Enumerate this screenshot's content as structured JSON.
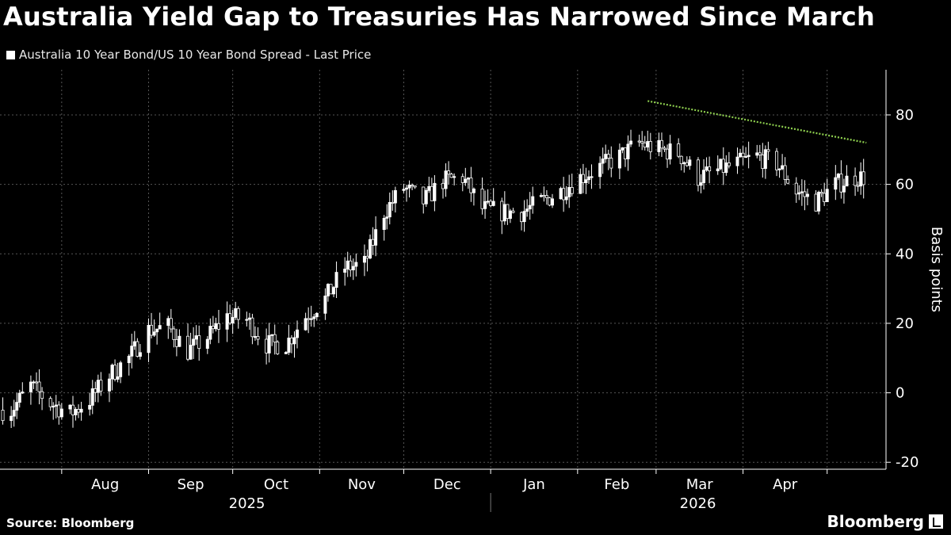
{
  "header": {
    "title": "Australia Yield Gap to Treasuries Has Narrowed Since March",
    "legend_label": "Australia 10 Year Bond/US 10 Year Bond Spread - Last Price"
  },
  "footer": {
    "source": "Source: Bloomberg",
    "brand": "Bloomberg"
  },
  "colors": {
    "background": "#000000",
    "candle": "#ffffff",
    "grid": "#555555",
    "trendline": "#8fd14f"
  },
  "chart_data": {
    "type": "candlestick",
    "ylabel": "Basis points",
    "ylim": [
      -22,
      93
    ],
    "yticks": [
      -20,
      0,
      20,
      40,
      60,
      80
    ],
    "grid": true,
    "x_ticks": [
      "Aug",
      "Sep",
      "Oct",
      "Nov",
      "Dec",
      "Jan",
      "Feb",
      "Mar",
      "Apr"
    ],
    "year_labels": [
      "2025",
      "2026"
    ],
    "trendline": {
      "from": [
        "2026-02-26",
        84
      ],
      "to": [
        "2026-05-15",
        72
      ]
    },
    "series": [
      {
        "name": "Australia 10 Year Bond/US 10 Year Bond Spread - Last Price",
        "x": [
          "2025-07-14",
          "2025-07-21",
          "2025-07-28",
          "2025-08-04",
          "2025-08-11",
          "2025-08-18",
          "2025-08-25",
          "2025-09-01",
          "2025-09-08",
          "2025-09-15",
          "2025-09-22",
          "2025-09-29",
          "2025-10-06",
          "2025-10-13",
          "2025-10-20",
          "2025-10-27",
          "2025-11-03",
          "2025-11-10",
          "2025-11-17",
          "2025-11-24",
          "2025-12-01",
          "2025-12-08",
          "2025-12-15",
          "2025-12-22",
          "2025-12-29",
          "2026-01-05",
          "2026-01-12",
          "2026-01-19",
          "2026-01-26",
          "2026-02-02",
          "2026-02-09",
          "2026-02-16",
          "2026-02-23",
          "2026-03-02",
          "2026-03-09",
          "2026-03-16",
          "2026-03-23",
          "2026-03-30",
          "2026-04-06",
          "2026-04-13",
          "2026-04-20",
          "2026-04-27",
          "2026-05-04",
          "2026-05-11"
        ],
        "values": [
          -5,
          2,
          -3,
          -6,
          -2,
          5,
          10,
          18,
          19,
          12,
          16,
          22,
          21,
          14,
          14,
          22,
          27,
          36,
          37,
          52,
          59,
          55,
          61,
          62,
          53,
          52,
          52,
          55,
          58,
          62,
          65,
          68,
          72,
          70,
          69,
          62,
          64,
          66,
          68,
          66,
          58,
          55,
          60,
          62
        ]
      }
    ]
  }
}
